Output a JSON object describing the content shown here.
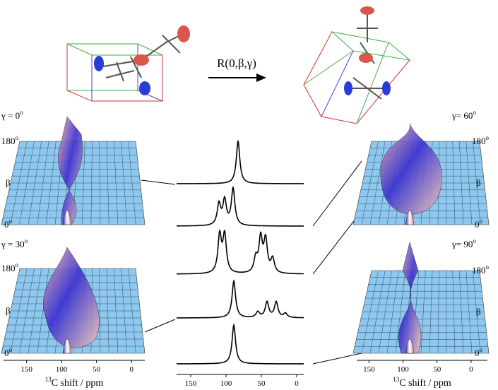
{
  "arrow_label": "R(0,β,γ)",
  "panels": [
    {
      "gamma": {
        "text": "γ = 0",
        "sup": "o"
      },
      "beta_max": {
        "text": "180",
        "sup": "o"
      },
      "beta_label": "β",
      "beta_min": {
        "text": "0",
        "sup": "o"
      }
    },
    {
      "gamma": {
        "text": "γ = 30",
        "sup": "o"
      },
      "beta_max": {
        "text": "180",
        "sup": "o"
      },
      "beta_label": "β",
      "beta_min": {
        "text": "0",
        "sup": "o"
      }
    },
    {
      "gamma": {
        "text": "γ= 60",
        "sup": "o"
      },
      "beta_max": {
        "text": "180",
        "sup": "o"
      },
      "beta_label": "β",
      "beta_min": {
        "text": "0",
        "sup": "o"
      }
    },
    {
      "gamma": {
        "text": "γ= 90",
        "sup": "o"
      },
      "beta_max": {
        "text": "180",
        "sup": "o"
      },
      "beta_label": "β",
      "beta_min": {
        "text": "0",
        "sup": "o"
      }
    }
  ],
  "axes": [
    {
      "xlim": [
        183,
        -19
      ],
      "xticks": [
        150,
        100,
        50,
        0
      ],
      "label": {
        "sup": "13",
        "text": "C shift / ppm"
      }
    },
    {
      "xlim": [
        170,
        -10
      ],
      "xticks": [
        150,
        100,
        50,
        0
      ]
    },
    {
      "xlim": [
        168,
        -24
      ],
      "xticks": [
        150,
        100,
        50,
        0
      ],
      "label": {
        "sup": "13",
        "text": "C shift / ppm"
      }
    }
  ],
  "spectra": [
    {
      "peaks": [
        {
          "ppm": 83,
          "height": 60
        }
      ]
    },
    {
      "peaks": [
        {
          "ppm": 110,
          "height": 30
        },
        {
          "ppm": 102,
          "height": 35
        },
        {
          "ppm": 90,
          "height": 52
        }
      ]
    },
    {
      "peaks": [
        {
          "ppm": 109,
          "height": 53
        },
        {
          "ppm": 102,
          "height": 53
        },
        {
          "ppm": 58,
          "height": 20
        },
        {
          "ppm": 51,
          "height": 48
        },
        {
          "ppm": 44,
          "height": 46
        },
        {
          "ppm": 34,
          "height": 20
        }
      ]
    },
    {
      "peaks": [
        {
          "ppm": 89,
          "height": 52
        },
        {
          "ppm": 55,
          "height": 8
        },
        {
          "ppm": 42,
          "height": 22
        },
        {
          "ppm": 29,
          "height": 22
        },
        {
          "ppm": 16,
          "height": 6
        }
      ]
    },
    {
      "peaks": [
        {
          "ppm": 89,
          "height": 55
        }
      ]
    }
  ]
}
